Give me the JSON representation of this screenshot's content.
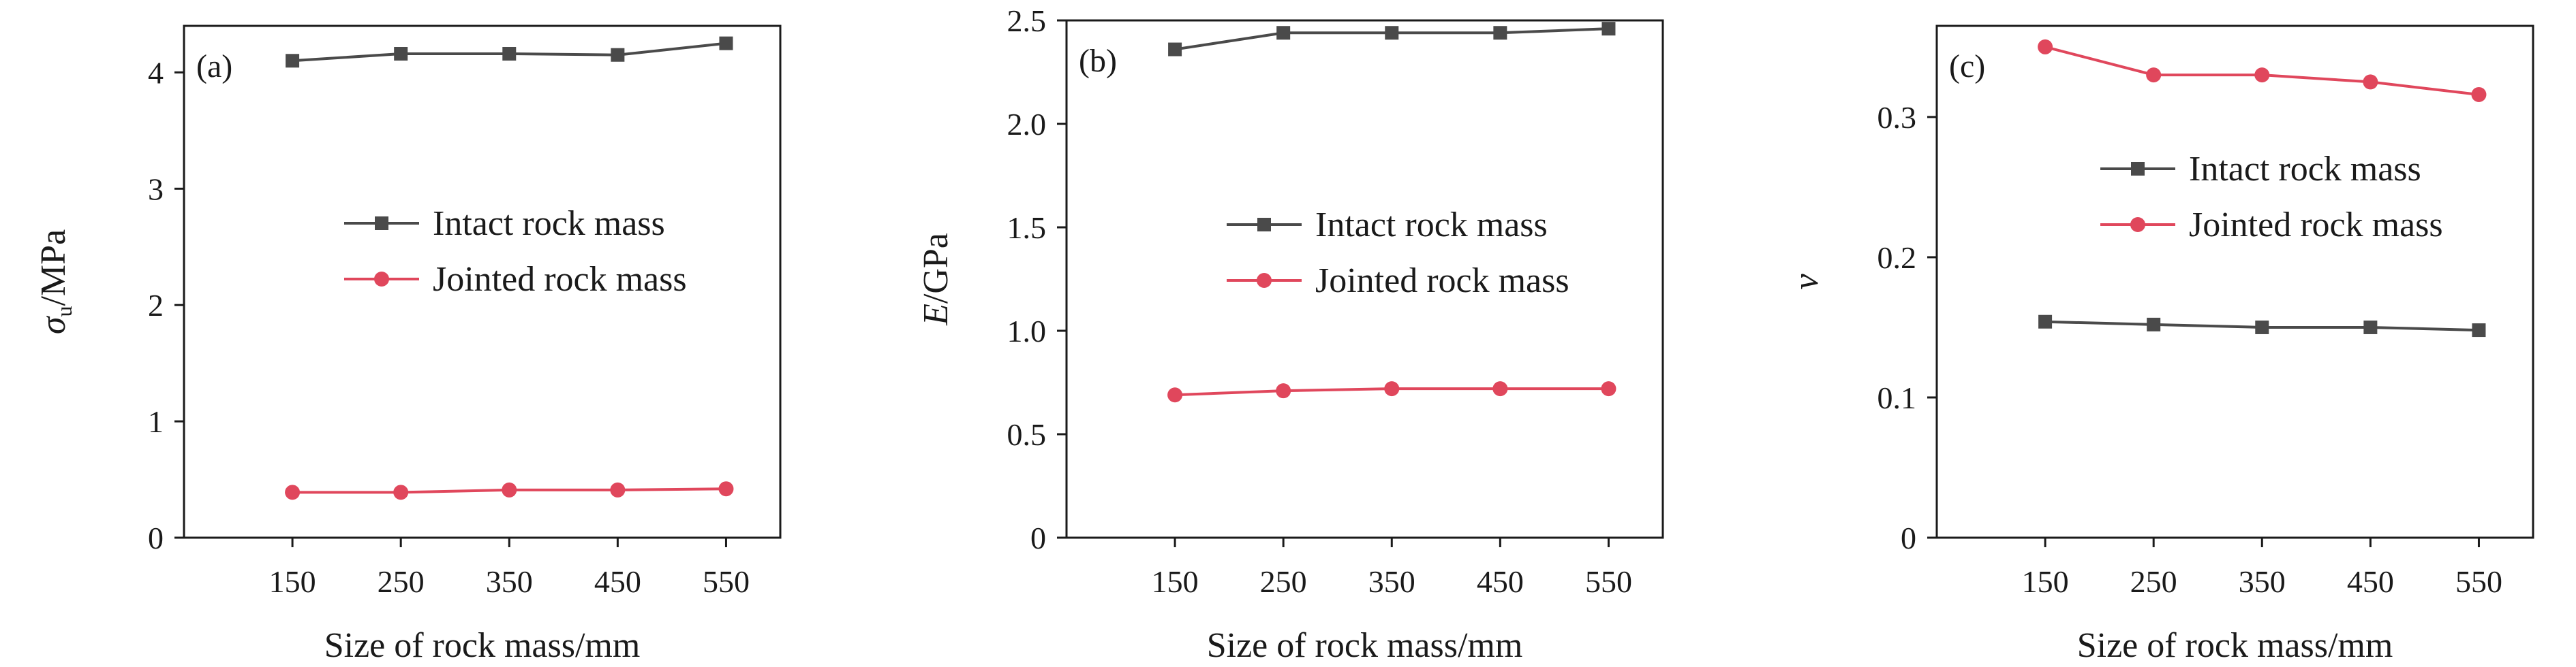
{
  "colors": {
    "intact": "#4a4a4a",
    "jointed": "#e0475c",
    "axis": "#1a1a1a"
  },
  "chart_data": [
    {
      "type": "line",
      "panel_label": "(a)",
      "xlabel": "Size of rock mass/mm",
      "ylabel_main": "σ",
      "ylabel_sub": "u",
      "ylabel_rest": "/MPa",
      "x": [
        150,
        250,
        350,
        450,
        550
      ],
      "xlim": [
        50,
        600
      ],
      "ylim": [
        0,
        4.4
      ],
      "yticks": [
        0,
        1,
        2,
        3,
        4
      ],
      "ytick_labels": [
        "0",
        "1",
        "2",
        "3",
        "4"
      ],
      "legend_position": "center-right",
      "series": [
        {
          "name": "Intact rock mass",
          "marker": "square",
          "color": "#4a4a4a",
          "values": [
            4.1,
            4.16,
            4.16,
            4.15,
            4.25
          ]
        },
        {
          "name": "Jointed rock mass",
          "marker": "circle",
          "color": "#e0475c",
          "values": [
            0.39,
            0.39,
            0.41,
            0.41,
            0.42
          ]
        }
      ]
    },
    {
      "type": "line",
      "panel_label": "(b)",
      "xlabel": "Size of rock mass/mm",
      "ylabel_main": "E",
      "ylabel_sub": "",
      "ylabel_rest": "/GPa",
      "x": [
        150,
        250,
        350,
        450,
        550
      ],
      "xlim": [
        50,
        600
      ],
      "ylim": [
        0,
        2.5
      ],
      "yticks": [
        0,
        0.5,
        1.0,
        1.5,
        2.0,
        2.5
      ],
      "ytick_labels": [
        "0",
        "0.5",
        "1.0",
        "1.5",
        "2.0",
        "2.5"
      ],
      "legend_position": "center-right",
      "series": [
        {
          "name": "Intact rock mass",
          "marker": "square",
          "color": "#4a4a4a",
          "values": [
            2.36,
            2.44,
            2.44,
            2.44,
            2.46
          ]
        },
        {
          "name": "Jointed rock mass",
          "marker": "circle",
          "color": "#e0475c",
          "values": [
            0.69,
            0.71,
            0.72,
            0.72,
            0.72
          ]
        }
      ]
    },
    {
      "type": "line",
      "panel_label": "(c)",
      "xlabel": "Size of rock mass/mm",
      "ylabel_main": "ν",
      "ylabel_sub": "",
      "ylabel_rest": "",
      "x": [
        150,
        250,
        350,
        450,
        550
      ],
      "xlim": [
        50,
        600
      ],
      "ylim": [
        0,
        0.365
      ],
      "yticks": [
        0,
        0.1,
        0.2,
        0.3
      ],
      "ytick_labels": [
        "0",
        "0.1",
        "0.2",
        "0.3"
      ],
      "legend_position": "center-right",
      "series": [
        {
          "name": "Intact rock mass",
          "marker": "square",
          "color": "#4a4a4a",
          "values": [
            0.154,
            0.152,
            0.15,
            0.15,
            0.148
          ]
        },
        {
          "name": "Jointed rock mass",
          "marker": "circle",
          "color": "#e0475c",
          "values": [
            0.35,
            0.33,
            0.33,
            0.325,
            0.316
          ]
        }
      ]
    }
  ]
}
